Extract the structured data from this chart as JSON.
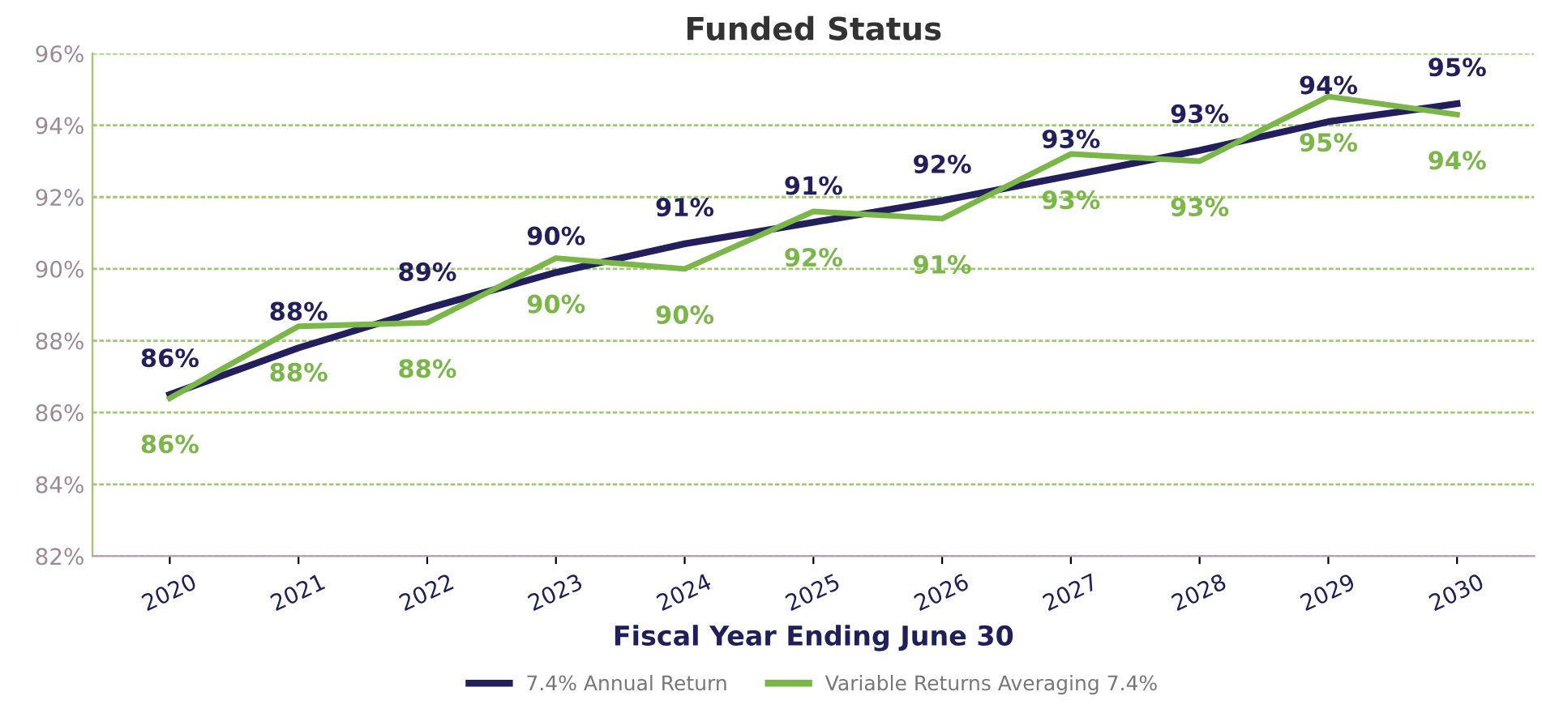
{
  "chart_data": {
    "type": "line",
    "title": "Funded Status",
    "xlabel": "Fiscal Year Ending June 30",
    "categories": [
      "2020",
      "2021",
      "2022",
      "2023",
      "2024",
      "2025",
      "2026",
      "2027",
      "2028",
      "2029",
      "2030"
    ],
    "series": [
      {
        "name": "7.4% Annual Return",
        "color": "#231f5c",
        "values": [
          86.5,
          87.8,
          88.9,
          89.9,
          90.7,
          91.3,
          91.9,
          92.6,
          93.3,
          94.1,
          94.6
        ],
        "value_labels": [
          "86%",
          "88%",
          "89%",
          "90%",
          "91%",
          "91%",
          "92%",
          "93%",
          "93%",
          "94%",
          "95%"
        ]
      },
      {
        "name": "Variable Returns Averaging 7.4%",
        "color": "#7ab648",
        "values": [
          86.4,
          88.4,
          88.5,
          90.3,
          90.0,
          91.6,
          91.4,
          93.2,
          93.0,
          94.8,
          94.3
        ],
        "value_labels": [
          "86%",
          "88%",
          "88%",
          "90%",
          "90%",
          "92%",
          "91%",
          "93%",
          "93%",
          "95%",
          "94%"
        ]
      }
    ],
    "ylim": [
      82,
      96
    ],
    "yticks": [
      {
        "value": 82,
        "label": "82%"
      },
      {
        "value": 84,
        "label": "84%"
      },
      {
        "value": 86,
        "label": "86%"
      },
      {
        "value": 88,
        "label": "88%"
      },
      {
        "value": 90,
        "label": "90%"
      },
      {
        "value": 92,
        "label": "92%"
      },
      {
        "value": 94,
        "label": "94%"
      },
      {
        "value": 96,
        "label": "96%"
      }
    ],
    "grid": "y",
    "legend": "bottom",
    "marker": "none",
    "line_style": "solid"
  }
}
